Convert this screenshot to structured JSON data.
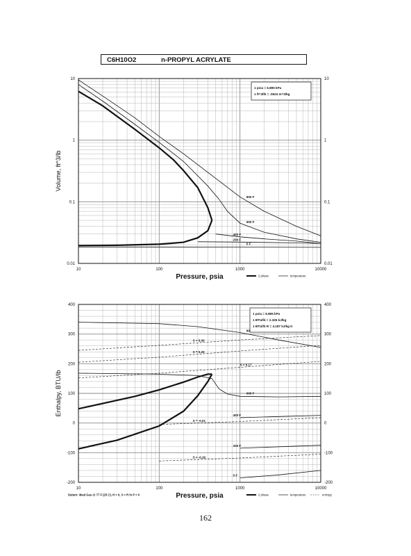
{
  "header": {
    "formula": "C6H10O2",
    "name": "n-PROPYL ACRYLATE"
  },
  "page_number": "162",
  "colors": {
    "ink": "#111111",
    "grid": "#8a8a8a",
    "minor_grid": "#b5b5b5"
  },
  "chart_data": [
    {
      "type": "line",
      "scale": "log-log",
      "xlabel": "Pressure,  psia",
      "ylabel": "Volume, ft^3/lb",
      "xlim": [
        10,
        10000
      ],
      "ylim": [
        0.01,
        10
      ],
      "x_ticks": [
        "10",
        "100",
        "1000",
        "10000"
      ],
      "y_ticks_left": [
        "10",
        "1",
        "0.1",
        "0.01"
      ],
      "y_ticks_right": [
        "10",
        "1",
        "0.1",
        "0.01"
      ],
      "grid": true,
      "conversions": [
        "1 psia  =  6.895 kPa",
        "1 ft^3/lb  =  .0624 m^3/kg"
      ],
      "legend": {
        "placement": "below-right",
        "items": [
          "2 phase",
          "temperature"
        ]
      },
      "saturation_dome": {
        "liquid": {
          "x": [
            10,
            30,
            100,
            200,
            300,
            400,
            450
          ],
          "y": [
            0.0195,
            0.0197,
            0.0205,
            0.022,
            0.026,
            0.034,
            0.05
          ]
        },
        "vapor": {
          "x": [
            10,
            20,
            50,
            100,
            150,
            200,
            300,
            400,
            450
          ],
          "y": [
            6.2,
            3.6,
            1.5,
            0.75,
            0.48,
            0.32,
            0.17,
            0.08,
            0.05
          ]
        }
      },
      "isotherms": [
        {
          "label": "800 F",
          "x": [
            10,
            20,
            50,
            100,
            200,
            500,
            1000,
            2000,
            5000,
            10000
          ],
          "y": [
            9.5,
            5.2,
            2.3,
            1.15,
            0.6,
            0.24,
            0.12,
            0.07,
            0.04,
            0.028
          ]
        },
        {
          "label": "600 F",
          "x": [
            10,
            20,
            50,
            100,
            200,
            400,
            550,
            700,
            1000,
            2000,
            5000,
            10000
          ],
          "y": [
            8.0,
            4.3,
            1.8,
            0.92,
            0.45,
            0.18,
            0.11,
            0.07,
            0.045,
            0.032,
            0.025,
            0.022
          ]
        },
        {
          "label": "400 F",
          "x": [
            500,
            1000,
            2000,
            5000,
            10000
          ],
          "y": [
            0.03,
            0.027,
            0.025,
            0.023,
            0.021
          ]
        },
        {
          "label": "200 F",
          "x": [
            300,
            1000,
            2000,
            5000,
            10000
          ],
          "y": [
            0.0225,
            0.0222,
            0.0219,
            0.0215,
            0.021
          ]
        },
        {
          "label": "0 F",
          "x": [
            10,
            1000,
            10000
          ],
          "y": [
            0.0185,
            0.0184,
            0.0182
          ]
        }
      ]
    },
    {
      "type": "line",
      "scale": "semilog-x",
      "xlabel": "Pressure,  psia",
      "ylabel": "Enthalpy, BTU/lb",
      "xlim": [
        10,
        10000
      ],
      "ylim": [
        -200,
        400
      ],
      "x_ticks": [
        "10",
        "100",
        "1000",
        "10000"
      ],
      "y_ticks_left": [
        "400",
        "300",
        "200",
        "100",
        "0",
        "-100",
        "-200"
      ],
      "y_ticks_right": [
        "400",
        "300",
        "200",
        "100",
        "0",
        "-100",
        "-200"
      ],
      "grid": true,
      "conversions": [
        "1 psia  =  6.895 kPa",
        "1 BTU/lb  =  2.326 kJ/kg",
        "1 BTU/lb R  =  4.187 kJ/kg K"
      ],
      "datum": "Datum: Ideal Gas @ 77 F (25 C),  H = 0,  S = R ln P = 0",
      "legend": {
        "placement": "below-right",
        "items": [
          "2 phase",
          "temperature",
          "entropy"
        ]
      },
      "saturation_dome": {
        "vapor": {
          "x": [
            10,
            50,
            100,
            200,
            300,
            400,
            450
          ],
          "y": [
            48,
            90,
            112,
            138,
            155,
            165,
            165
          ]
        },
        "liquid": {
          "x": [
            10,
            30,
            100,
            200,
            300,
            400,
            450
          ],
          "y": [
            -87,
            -58,
            -10,
            40,
            92,
            140,
            165
          ]
        }
      },
      "isotherms": [
        {
          "label": "800 F",
          "x": [
            10,
            100,
            300,
            1000,
            3000,
            10000
          ],
          "y": [
            340,
            335,
            325,
            305,
            280,
            255
          ]
        },
        {
          "label": "600 F",
          "x": [
            10,
            100,
            300,
            450,
            550,
            700,
            1000,
            3000,
            10000
          ],
          "y": [
            168,
            165,
            160,
            150,
            115,
            98,
            90,
            88,
            90
          ]
        },
        {
          "label": "400 F",
          "x": [
            1000,
            3000,
            10000
          ],
          "y": [
            18,
            22,
            26
          ]
        },
        {
          "label": "200 F",
          "x": [
            1000,
            3000,
            10000
          ],
          "y": [
            -85,
            -80,
            -75
          ]
        },
        {
          "label": "0 F",
          "x": [
            1000,
            3000,
            10000
          ],
          "y": [
            -185,
            -175,
            -160
          ]
        }
      ],
      "isentropes": [
        {
          "label": "S = 0.30",
          "x": [
            10,
            100,
            1000,
            10000
          ],
          "y": [
            245,
            262,
            280,
            295
          ]
        },
        {
          "label": "S = 0.20",
          "x": [
            10,
            100,
            1000,
            10000
          ],
          "y": [
            205,
            222,
            243,
            262
          ]
        },
        {
          "label": "S = 0.17",
          "x": [
            10,
            100,
            1000,
            10000
          ],
          "y": [
            152,
            168,
            188,
            208
          ]
        },
        {
          "label": "S = -0.01",
          "x": [
            100,
            1000,
            10000
          ],
          "y": [
            -5,
            5,
            18
          ]
        },
        {
          "label": "S = -0.16",
          "x": [
            100,
            1000,
            10000
          ],
          "y": [
            -128,
            -118,
            -105
          ]
        }
      ]
    }
  ]
}
